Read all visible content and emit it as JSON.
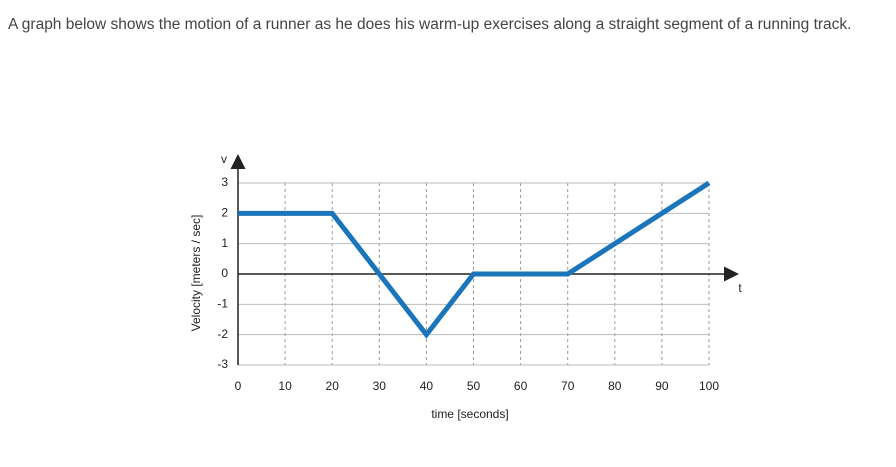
{
  "question": "A graph below shows the motion of a runner as he does his warm-up exercises along a straight segment of a running track.",
  "chart_data": {
    "type": "line",
    "xlabel": "time [seconds]",
    "ylabel": "Velocity [meters / sec]",
    "x_axis_symbol": "t",
    "y_axis_symbol": "v",
    "x": [
      0,
      20,
      40,
      50,
      70,
      100
    ],
    "series": [
      {
        "color": "#1a75bb",
        "values": [
          2,
          2,
          -2,
          0,
          0,
          3
        ]
      }
    ],
    "xlim": [
      0,
      100
    ],
    "xticks": [
      0,
      10,
      20,
      30,
      40,
      50,
      60,
      70,
      80,
      90,
      100
    ],
    "ylim": [
      -3,
      3
    ],
    "yticks": [
      -3,
      -2,
      -1,
      0,
      1,
      2,
      3
    ],
    "grid": true
  }
}
